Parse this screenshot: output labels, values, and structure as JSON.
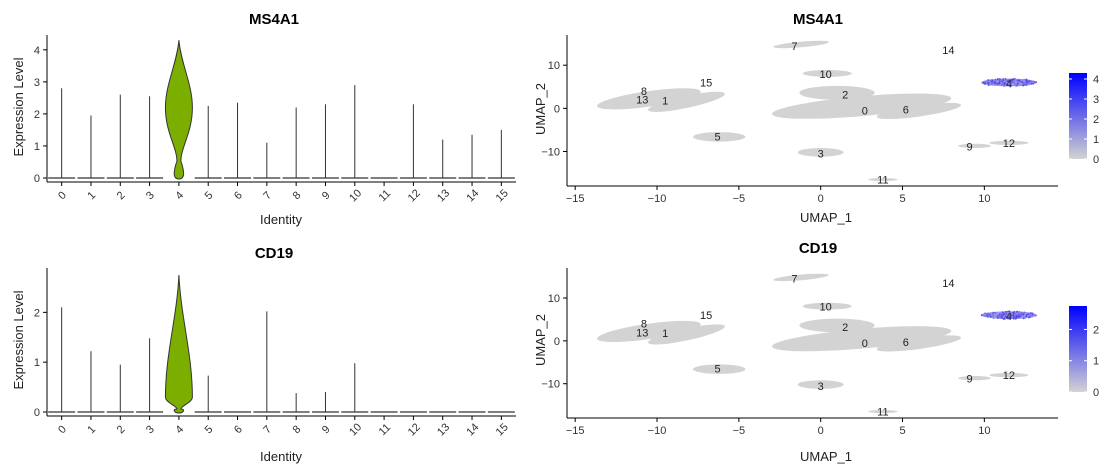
{
  "chart_data": [
    {
      "type": "violin",
      "title": "MS4A1",
      "xlabel": "Identity",
      "ylabel": "Expression Level",
      "categories": [
        "0",
        "1",
        "2",
        "3",
        "4",
        "5",
        "6",
        "7",
        "8",
        "9",
        "10",
        "11",
        "12",
        "13",
        "14",
        "15"
      ],
      "max_values": [
        2.8,
        1.95,
        2.6,
        2.55,
        4.3,
        2.25,
        2.35,
        1.1,
        2.2,
        2.3,
        2.9,
        0.0,
        2.3,
        1.2,
        1.35,
        1.5
      ],
      "highlight": {
        "category": "4",
        "median": 2.2,
        "color": "#7cae00"
      },
      "yticks": [
        0,
        1,
        2,
        3,
        4
      ],
      "ylim": [
        0,
        4.4
      ]
    },
    {
      "type": "scatter",
      "title": "MS4A1",
      "xlabel": "UMAP_1",
      "ylabel": "UMAP_2",
      "xticks": [
        -15,
        -10,
        -5,
        0,
        5,
        10
      ],
      "yticks": [
        -10,
        0,
        10
      ],
      "xlim": [
        -15.5,
        14.5
      ],
      "ylim": [
        -18,
        17
      ],
      "cluster_labels": [
        {
          "label": "0",
          "x": 2.7,
          "y": -0.5
        },
        {
          "label": "1",
          "x": -9.5,
          "y": 1.8
        },
        {
          "label": "2",
          "x": 1.5,
          "y": 3.2
        },
        {
          "label": "3",
          "x": 0,
          "y": -10.5
        },
        {
          "label": "4",
          "x": 11.5,
          "y": 5.8
        },
        {
          "label": "5",
          "x": -6.3,
          "y": -6.5
        },
        {
          "label": "6",
          "x": 5.2,
          "y": -0.3
        },
        {
          "label": "7",
          "x": -1.6,
          "y": 14.5
        },
        {
          "label": "8",
          "x": -10.8,
          "y": 4
        },
        {
          "label": "9",
          "x": 9.1,
          "y": -8.8
        },
        {
          "label": "10",
          "x": 0.3,
          "y": 8
        },
        {
          "label": "11",
          "x": 3.8,
          "y": -16.5
        },
        {
          "label": "12",
          "x": 11.5,
          "y": -8
        },
        {
          "label": "13",
          "x": -10.9,
          "y": 2
        },
        {
          "label": "14",
          "x": 7.8,
          "y": 13.5
        },
        {
          "label": "15",
          "x": -7,
          "y": 6
        }
      ],
      "colorbar": {
        "ticks": [
          0,
          1,
          2,
          3,
          4
        ],
        "min": 0,
        "max": 4.3,
        "low_color": "#d3d3d3",
        "high_color": "#0000ff"
      }
    },
    {
      "type": "violin",
      "title": "CD19",
      "xlabel": "Identity",
      "ylabel": "Expression Level",
      "categories": [
        "0",
        "1",
        "2",
        "3",
        "4",
        "5",
        "6",
        "7",
        "8",
        "9",
        "10",
        "11",
        "12",
        "13",
        "14",
        "15"
      ],
      "max_values": [
        2.1,
        1.22,
        0.95,
        1.48,
        2.75,
        0.73,
        0.0,
        2.02,
        0.38,
        0.4,
        0.98,
        0.0,
        0.0,
        0.0,
        0.0,
        0.0
      ],
      "highlight": {
        "category": "4",
        "median": 0.3,
        "color": "#7cae00"
      },
      "yticks": [
        0,
        1,
        2
      ],
      "ylim": [
        0,
        2.85
      ]
    },
    {
      "type": "scatter",
      "title": "CD19",
      "xlabel": "UMAP_1",
      "ylabel": "UMAP_2",
      "xticks": [
        -15,
        -10,
        -5,
        0,
        5,
        10
      ],
      "yticks": [
        -10,
        0,
        10
      ],
      "xlim": [
        -15.5,
        14.5
      ],
      "ylim": [
        -18,
        17
      ],
      "cluster_labels": [
        {
          "label": "0",
          "x": 2.7,
          "y": -0.5
        },
        {
          "label": "1",
          "x": -9.5,
          "y": 1.8
        },
        {
          "label": "2",
          "x": 1.5,
          "y": 3.2
        },
        {
          "label": "3",
          "x": 0,
          "y": -10.5
        },
        {
          "label": "4",
          "x": 11.5,
          "y": 5.8
        },
        {
          "label": "5",
          "x": -6.3,
          "y": -6.5
        },
        {
          "label": "6",
          "x": 5.2,
          "y": -0.3
        },
        {
          "label": "7",
          "x": -1.6,
          "y": 14.5
        },
        {
          "label": "8",
          "x": -10.8,
          "y": 4
        },
        {
          "label": "9",
          "x": 9.1,
          "y": -8.8
        },
        {
          "label": "10",
          "x": 0.3,
          "y": 8
        },
        {
          "label": "11",
          "x": 3.8,
          "y": -16.5
        },
        {
          "label": "12",
          "x": 11.5,
          "y": -8
        },
        {
          "label": "13",
          "x": -10.9,
          "y": 2
        },
        {
          "label": "14",
          "x": 7.8,
          "y": 13.5
        },
        {
          "label": "15",
          "x": -7,
          "y": 6
        }
      ],
      "colorbar": {
        "ticks": [
          0,
          1,
          2
        ],
        "min": 0,
        "max": 2.75,
        "low_color": "#d3d3d3",
        "high_color": "#0000ff"
      }
    }
  ]
}
